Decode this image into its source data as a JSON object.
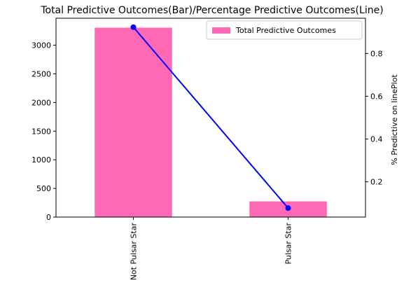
{
  "chart_data": {
    "type": "bar",
    "title": "Total Predictive Outcomes(Bar)/Percentage Predictive Outcomes(Line)",
    "categories": [
      "Not Pulsar Star",
      "Pulsar Star"
    ],
    "series": [
      {
        "name": "Total Predictive Outcomes",
        "type": "bar",
        "axis": "left",
        "color": "#ff69b4",
        "values": [
          3306,
          274
        ]
      },
      {
        "type": "line",
        "axis": "right",
        "color": "#0000ff",
        "values": [
          0.923,
          0.077
        ]
      }
    ],
    "y_left": {
      "label": "",
      "ylim": [
        0,
        3471
      ],
      "ticks": [
        0,
        500,
        1000,
        1500,
        2000,
        2500,
        3000
      ]
    },
    "y_right": {
      "label": "% Predictive on linePlot",
      "ylim": [
        0.035,
        0.965
      ],
      "ticks": [
        0.2,
        0.4,
        0.6,
        0.8
      ]
    },
    "xlabel": "",
    "legend": {
      "position": "top-right",
      "entries": [
        "Total Predictive Outcomes"
      ]
    },
    "grid": false
  }
}
